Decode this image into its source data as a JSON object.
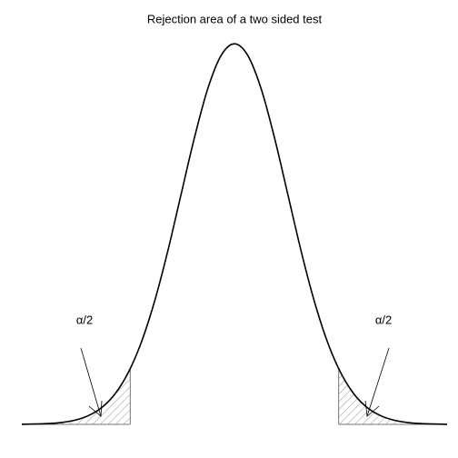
{
  "chart_data": {
    "type": "line",
    "title": "Rejection area of a two sided test",
    "x": [
      -4,
      -3.75,
      -3.5,
      -3.25,
      -3,
      -2.75,
      -2.5,
      -2.25,
      -2,
      -1.75,
      -1.5,
      -1.25,
      -1,
      -0.75,
      -0.5,
      -0.25,
      0,
      0.25,
      0.5,
      0.75,
      1,
      1.25,
      1.5,
      1.75,
      2,
      2.25,
      2.5,
      2.75,
      3,
      3.25,
      3.5,
      3.75,
      4
    ],
    "values": [
      0.0001,
      0.0004,
      0.0009,
      0.002,
      0.0044,
      0.0091,
      0.0175,
      0.0317,
      0.054,
      0.0863,
      0.1295,
      0.1826,
      0.242,
      0.3011,
      0.3521,
      0.3867,
      0.3989,
      0.3867,
      0.3521,
      0.3011,
      0.242,
      0.1826,
      0.1295,
      0.0863,
      0.054,
      0.0317,
      0.0175,
      0.0091,
      0.0044,
      0.002,
      0.0009,
      0.0004,
      0.0001
    ],
    "color": "#000000",
    "critical_values": [
      -1.96,
      1.96
    ],
    "annotations": [
      "α/2",
      "α/2"
    ],
    "xlim": [
      -4,
      4
    ],
    "ylim": [
      0,
      0.4
    ]
  }
}
